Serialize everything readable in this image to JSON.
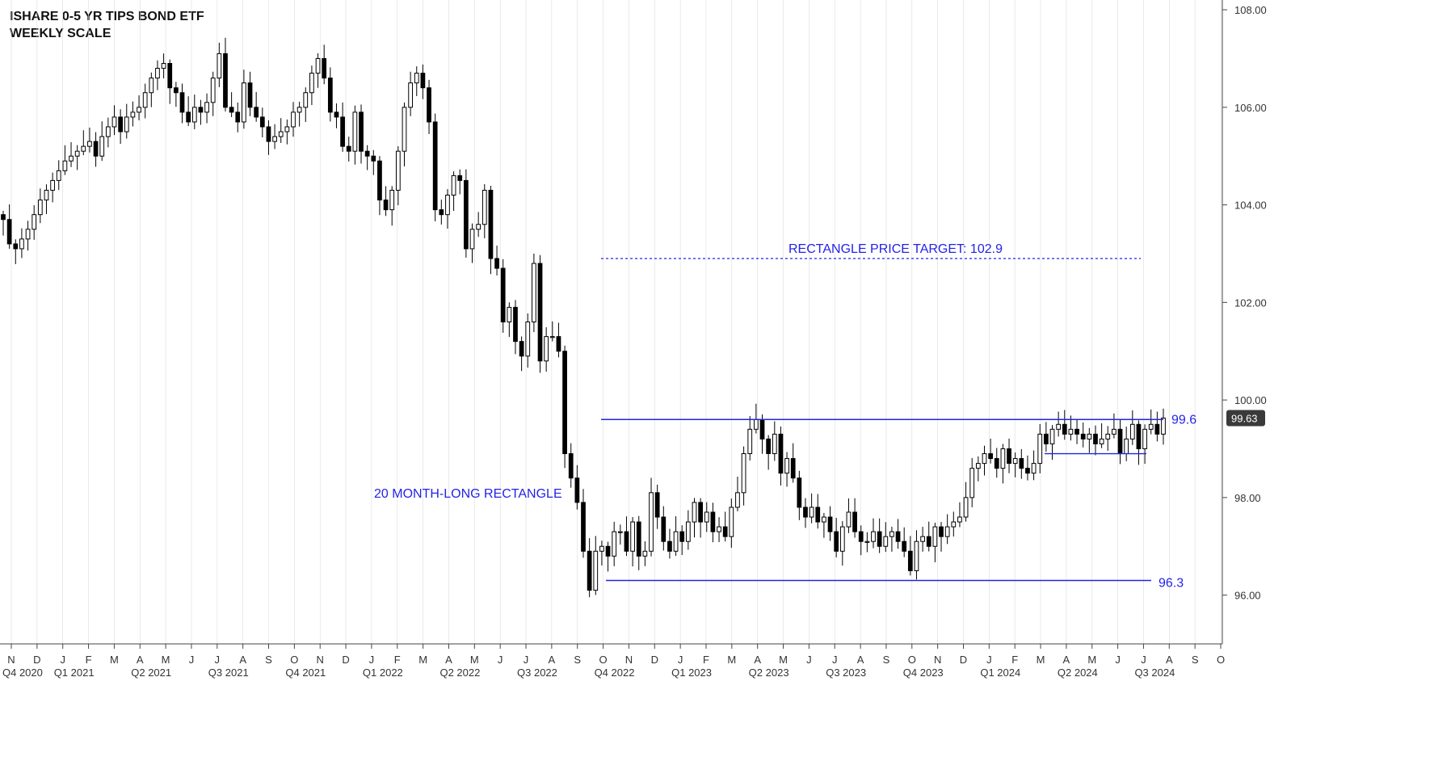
{
  "header": {
    "title": "ISHARE 0-5 YR TIPS BOND ETF",
    "subtitle": "WEEKLY SCALE"
  },
  "colors": {
    "annotation": "#2323e6",
    "axis": "#444444",
    "grid": "#dcdcdc",
    "candle": "#000000",
    "last_price_bg": "#3a3a3a"
  },
  "chart_data": {
    "type": "candlestick",
    "title": "ISHARE 0-5 YR TIPS BOND ETF",
    "subtitle": "WEEKLY SCALE",
    "scale": "weekly",
    "ylim": [
      95.0,
      108.2
    ],
    "y_ticks": [
      "108.00",
      "106.00",
      "104.00",
      "102.00",
      "100.00",
      "98.00",
      "96.00"
    ],
    "y_tick_values": [
      108,
      106,
      104,
      102,
      100,
      98,
      96
    ],
    "last_price_label": "99.63",
    "last_price": 99.63,
    "month_labels": [
      "N",
      "D",
      "J",
      "F",
      "M",
      "A",
      "M",
      "J",
      "J",
      "A",
      "S",
      "O",
      "N",
      "D",
      "J",
      "F",
      "M",
      "A",
      "M",
      "J",
      "J",
      "A",
      "S",
      "O",
      "N",
      "D",
      "J",
      "F",
      "M",
      "A",
      "M",
      "J",
      "J",
      "A",
      "S",
      "O",
      "N",
      "D",
      "J",
      "F",
      "M",
      "A",
      "M",
      "J",
      "J",
      "A",
      "S",
      "O"
    ],
    "quarter_labels": [
      "Q4 2020",
      "Q1 2021",
      "Q2 2021",
      "Q3 2021",
      "Q4 2021",
      "Q1 2022",
      "Q2 2022",
      "Q3 2022",
      "Q4 2022",
      "Q1 2023",
      "Q2 2023",
      "Q3 2023",
      "Q4 2023",
      "Q1 2024",
      "Q2 2024",
      "Q3 2024"
    ],
    "annotations": {
      "target_label": "RECTANGLE PRICE TARGET: 102.9",
      "target_value": 102.9,
      "pattern_label": "20 MONTH-LONG RECTANGLE",
      "upper_label": "99.6",
      "upper_value": 99.6,
      "lower_label": "96.3",
      "lower_value": 96.3,
      "inner_support_value": 98.9
    },
    "closes": [
      103.7,
      103.2,
      103.1,
      103.3,
      103.5,
      103.8,
      104.1,
      104.3,
      104.5,
      104.7,
      104.9,
      105.0,
      105.1,
      105.2,
      105.3,
      105.0,
      105.4,
      105.6,
      105.8,
      105.5,
      105.8,
      105.9,
      106.0,
      106.3,
      106.6,
      106.8,
      106.9,
      106.4,
      106.3,
      105.9,
      105.7,
      106.0,
      105.9,
      106.1,
      106.6,
      107.1,
      106.0,
      105.9,
      105.7,
      106.5,
      106.0,
      105.8,
      105.6,
      105.3,
      105.4,
      105.5,
      105.6,
      105.9,
      106.0,
      106.3,
      106.7,
      107.0,
      106.6,
      105.9,
      105.8,
      105.2,
      105.1,
      105.9,
      105.1,
      105.0,
      104.9,
      104.1,
      103.9,
      104.3,
      105.1,
      106.0,
      106.5,
      106.7,
      106.4,
      105.7,
      103.9,
      103.8,
      104.2,
      104.6,
      104.5,
      103.1,
      103.5,
      103.6,
      104.3,
      102.9,
      102.7,
      101.6,
      101.9,
      101.2,
      100.9,
      101.6,
      102.8,
      100.8,
      101.3,
      101.3,
      101.0,
      98.9,
      98.4,
      97.9,
      96.9,
      96.1,
      96.9,
      97.0,
      96.8,
      97.3,
      97.3,
      96.9,
      97.5,
      96.8,
      96.9,
      98.1,
      97.6,
      97.1,
      96.9,
      97.3,
      97.1,
      97.5,
      97.9,
      97.5,
      97.7,
      97.3,
      97.4,
      97.2,
      97.8,
      98.1,
      98.9,
      99.4,
      99.6,
      99.2,
      98.9,
      99.3,
      98.5,
      98.8,
      98.4,
      97.8,
      97.6,
      97.8,
      97.5,
      97.6,
      97.3,
      96.9,
      97.4,
      97.7,
      97.3,
      97.1,
      97.1,
      97.3,
      97.0,
      97.2,
      97.3,
      97.1,
      96.9,
      96.5,
      97.1,
      97.2,
      97.0,
      97.4,
      97.2,
      97.4,
      97.5,
      97.6,
      98.0,
      98.6,
      98.7,
      98.9,
      98.8,
      98.6,
      99.0,
      98.7,
      98.8,
      98.6,
      98.5,
      98.7,
      99.3,
      99.1,
      99.4,
      99.5,
      99.3,
      99.4,
      99.3,
      99.2,
      99.3,
      99.1,
      99.2,
      99.3,
      99.4,
      98.9,
      99.2,
      99.5,
      99.0,
      99.4,
      99.5,
      99.3,
      99.63
    ]
  }
}
